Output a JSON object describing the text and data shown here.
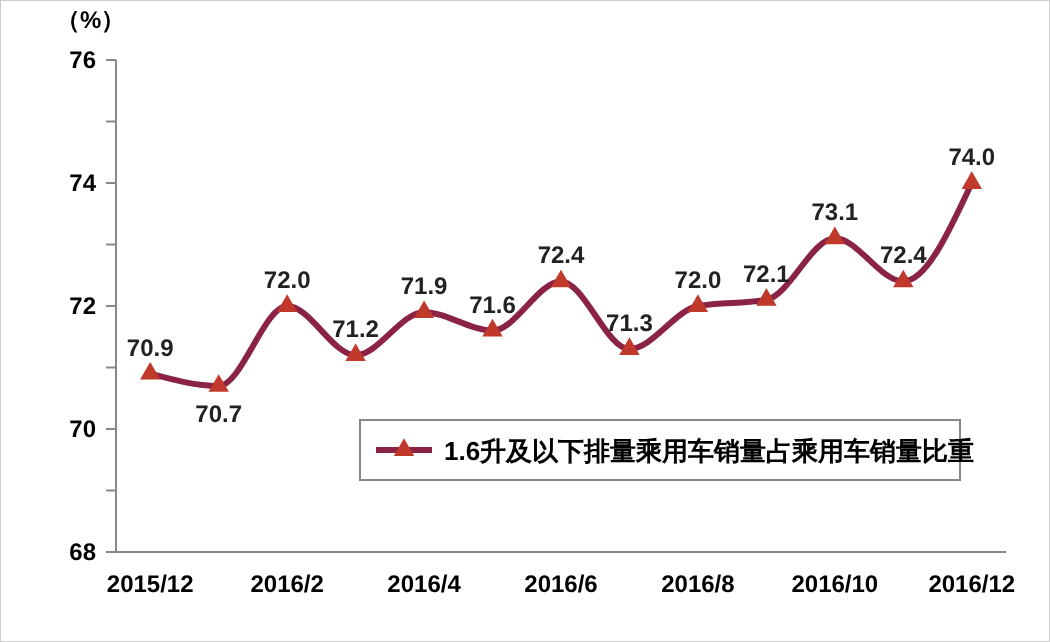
{
  "chart_data": {
    "type": "line",
    "ylabel": "（%）",
    "categories": [
      "2015/12",
      null,
      "2016/2",
      null,
      "2016/4",
      null,
      "2016/6",
      null,
      "2016/8",
      null,
      "2016/10",
      null,
      "2016/12"
    ],
    "series": [
      {
        "name": "1.6升及以下排量乘用车销量占乘用车销量比重",
        "color": "#8b2346",
        "values": [
          70.9,
          70.7,
          72.0,
          71.2,
          71.9,
          71.6,
          72.4,
          71.3,
          72.0,
          72.1,
          73.1,
          72.4,
          74.0
        ],
        "value_labels": [
          "70.9",
          "70.7",
          "72.0",
          "71.2",
          "71.9",
          "71.6",
          "72.4",
          "71.3",
          "72.0",
          "72.1",
          "73.1",
          "72.4",
          "74.0"
        ]
      }
    ],
    "ylim": [
      68,
      76
    ],
    "yticks": [
      68,
      {
        "value": 69,
        "label": null
      },
      70,
      {
        "value": 71,
        "label": null
      },
      72,
      {
        "value": 73,
        "label": null
      },
      74,
      {
        "value": 75,
        "label": null
      },
      76
    ],
    "marker": "triangle",
    "line_style": "solid",
    "legend": "bottom right",
    "grid": false
  }
}
